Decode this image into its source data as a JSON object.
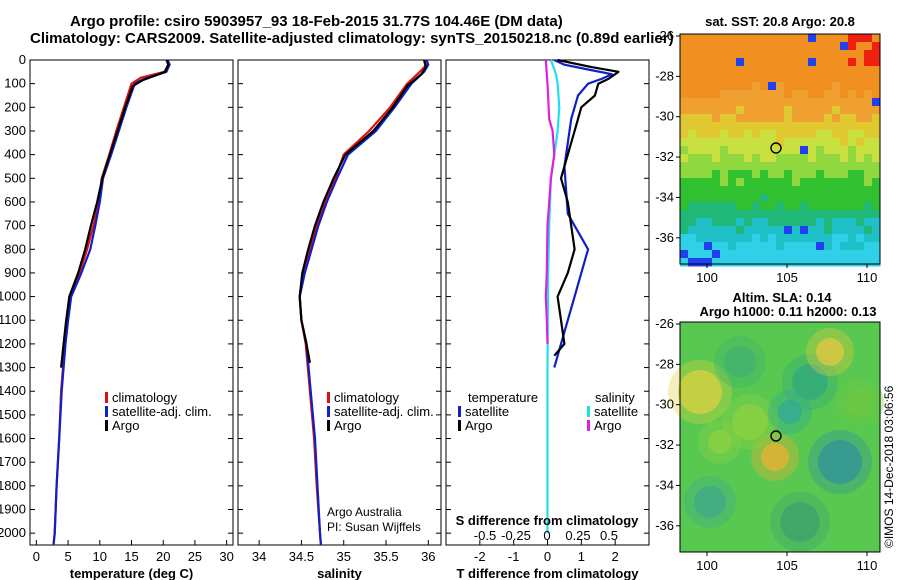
{
  "header": {
    "line1": "Argo profile: csiro 5903957_93 18-Feb-2015 31.77S 104.46E (DM data)",
    "line2": "Climatology: CARS2009. Satellite-adjusted climatology: synTS_20150218.nc (0.89d earlier)"
  },
  "colors": {
    "climatology": "#e01010",
    "satellite": "#1020c8",
    "argo": "#000000",
    "sat_salinity": "#20e0f0",
    "argo_salinity": "#e020e0"
  },
  "panels": {
    "temperature": {
      "xlabel": "temperature (deg C)",
      "legend": [
        "climatology",
        "satellite-adj. clim.",
        "Argo"
      ]
    },
    "salinity": {
      "xlabel": "salinity",
      "legend": [
        "climatology",
        "satellite-adj. clim.",
        "Argo"
      ],
      "credit1": "Argo Australia",
      "credit2": "PI: Susan Wijffels"
    },
    "difference": {
      "xlabel": "T difference from climatology",
      "xlabel_top": "S difference from climatology",
      "legend_temp_title": "temperature",
      "legend_sal_title": "salinity",
      "legend_temp": [
        "satellite",
        "Argo"
      ],
      "legend_sal": [
        "satellite",
        "Argo"
      ]
    },
    "maps": {
      "sst_title": "sat. SST: 20.8 Argo: 20.8",
      "sla_title1": "Altim. SLA: 0.14",
      "sla_title2": "Argo h1000: 0.11 h2000: 0.13",
      "lat_ticks": [
        "-26",
        "-28",
        "-30",
        "-32",
        "-34",
        "-36"
      ],
      "lon_ticks": [
        "100",
        "105",
        "110"
      ]
    },
    "watermark": "©IMOS 14-Dec-2018 03:06:56"
  },
  "chart_data": [
    {
      "type": "line",
      "title": "",
      "xlabel": "temperature (deg C)",
      "ylabel": "depth",
      "xlim": [
        -1,
        31
      ],
      "ylim": [
        2050,
        0
      ],
      "xticks": [
        "0",
        "5",
        "10",
        "15",
        "20",
        "25",
        "30"
      ],
      "yticks": [
        "0",
        "100",
        "200",
        "300",
        "400",
        "500",
        "600",
        "700",
        "800",
        "900",
        "1000",
        "1100",
        "1200",
        "1300",
        "1400",
        "1500",
        "1600",
        "1700",
        "1800",
        "1900",
        "2000"
      ],
      "series": [
        {
          "name": "climatology",
          "color_key": "climatology",
          "points": [
            [
              20.5,
              0
            ],
            [
              20.8,
              20
            ],
            [
              20.2,
              50
            ],
            [
              16.5,
              75
            ],
            [
              15.0,
              100
            ],
            [
              13.8,
              200
            ],
            [
              12.6,
              300
            ],
            [
              11.5,
              400
            ],
            [
              10.3,
              500
            ],
            [
              9.9,
              600
            ],
            [
              9.0,
              700
            ],
            [
              8.0,
              800
            ],
            [
              6.8,
              900
            ],
            [
              5.3,
              1000
            ],
            [
              4.8,
              1100
            ],
            [
              4.5,
              1200
            ],
            [
              3.9,
              1400
            ],
            [
              3.6,
              1600
            ],
            [
              3.2,
              1800
            ],
            [
              2.9,
              2000
            ],
            [
              2.7,
              2050
            ]
          ]
        },
        {
          "name": "satellite-adj. clim.",
          "color_key": "satellite",
          "points": [
            [
              20.7,
              0
            ],
            [
              21.0,
              20
            ],
            [
              20.5,
              50
            ],
            [
              17.0,
              80
            ],
            [
              15.5,
              100
            ],
            [
              14.2,
              200
            ],
            [
              13.0,
              300
            ],
            [
              11.8,
              400
            ],
            [
              10.5,
              500
            ],
            [
              10.0,
              600
            ],
            [
              9.3,
              700
            ],
            [
              8.5,
              800
            ],
            [
              7.1,
              900
            ],
            [
              5.5,
              1000
            ],
            [
              5.0,
              1100
            ],
            [
              4.6,
              1200
            ],
            [
              4.0,
              1400
            ],
            [
              3.6,
              1600
            ],
            [
              3.2,
              1800
            ],
            [
              2.9,
              2000
            ],
            [
              2.7,
              2050
            ]
          ]
        },
        {
          "name": "Argo",
          "color_key": "argo",
          "points": [
            [
              20.6,
              0
            ],
            [
              20.8,
              20
            ],
            [
              20.3,
              50
            ],
            [
              16.8,
              85
            ],
            [
              15.2,
              110
            ],
            [
              14.0,
              200
            ],
            [
              12.8,
              300
            ],
            [
              11.6,
              400
            ],
            [
              10.4,
              500
            ],
            [
              9.6,
              600
            ],
            [
              8.6,
              700
            ],
            [
              7.7,
              800
            ],
            [
              6.6,
              900
            ],
            [
              5.2,
              1000
            ],
            [
              4.7,
              1100
            ],
            [
              4.3,
              1200
            ],
            [
              3.9,
              1300
            ]
          ]
        }
      ]
    },
    {
      "type": "line",
      "title": "",
      "xlabel": "salinity",
      "ylabel": "depth",
      "xlim": [
        33.75,
        36.15
      ],
      "ylim": [
        2050,
        0
      ],
      "xticks": [
        "34",
        "34.5",
        "35",
        "35.5",
        "36"
      ],
      "series": [
        {
          "name": "climatology",
          "color_key": "climatology",
          "points": [
            [
              35.95,
              0
            ],
            [
              35.98,
              20
            ],
            [
              35.9,
              50
            ],
            [
              35.75,
              100
            ],
            [
              35.55,
              200
            ],
            [
              35.3,
              300
            ],
            [
              35.0,
              400
            ],
            [
              34.9,
              500
            ],
            [
              34.78,
              600
            ],
            [
              34.68,
              700
            ],
            [
              34.6,
              800
            ],
            [
              34.52,
              900
            ],
            [
              34.48,
              1000
            ],
            [
              34.5,
              1100
            ],
            [
              34.55,
              1200
            ],
            [
              34.6,
              1400
            ],
            [
              34.65,
              1600
            ],
            [
              34.68,
              1800
            ],
            [
              34.72,
              2000
            ],
            [
              34.73,
              2050
            ]
          ]
        },
        {
          "name": "satellite-adj. clim.",
          "color_key": "satellite",
          "points": [
            [
              35.98,
              0
            ],
            [
              36.0,
              20
            ],
            [
              35.95,
              50
            ],
            [
              35.8,
              100
            ],
            [
              35.6,
              200
            ],
            [
              35.38,
              300
            ],
            [
              35.05,
              400
            ],
            [
              34.92,
              500
            ],
            [
              34.8,
              600
            ],
            [
              34.7,
              700
            ],
            [
              34.62,
              800
            ],
            [
              34.54,
              900
            ],
            [
              34.48,
              1000
            ],
            [
              34.5,
              1100
            ],
            [
              34.56,
              1200
            ],
            [
              34.61,
              1400
            ],
            [
              34.66,
              1600
            ],
            [
              34.69,
              1800
            ],
            [
              34.72,
              2000
            ],
            [
              34.73,
              2050
            ]
          ]
        },
        {
          "name": "Argo",
          "color_key": "argo",
          "points": [
            [
              35.95,
              0
            ],
            [
              35.97,
              30
            ],
            [
              35.92,
              60
            ],
            [
              35.75,
              110
            ],
            [
              35.58,
              200
            ],
            [
              35.35,
              300
            ],
            [
              35.02,
              400
            ],
            [
              34.88,
              500
            ],
            [
              34.76,
              600
            ],
            [
              34.66,
              700
            ],
            [
              34.58,
              800
            ],
            [
              34.51,
              900
            ],
            [
              34.48,
              1000
            ],
            [
              34.5,
              1100
            ],
            [
              34.56,
              1200
            ],
            [
              34.6,
              1280
            ]
          ]
        }
      ]
    },
    {
      "type": "line",
      "title": "",
      "xlabel": "T difference from climatology",
      "xlabel_top": "S difference from climatology",
      "ylabel": "depth",
      "xlim": [
        -3,
        3
      ],
      "ylim": [
        2050,
        0
      ],
      "xticks": [
        "-2",
        "-1",
        "0",
        "1",
        "2"
      ],
      "xticks_top": [
        "-0.5",
        "-0.25",
        "0",
        "0.25",
        "0.5"
      ],
      "series": [
        {
          "name": "temperature satellite",
          "color_key": "satellite",
          "points": [
            [
              0.2,
              0
            ],
            [
              0.5,
              20
            ],
            [
              1.2,
              40
            ],
            [
              1.9,
              60
            ],
            [
              1.6,
              80
            ],
            [
              1.2,
              100
            ],
            [
              0.9,
              150
            ],
            [
              0.7,
              250
            ],
            [
              0.6,
              350
            ],
            [
              0.5,
              450
            ],
            [
              0.55,
              550
            ],
            [
              0.6,
              650
            ],
            [
              1.0,
              750
            ],
            [
              1.2,
              800
            ],
            [
              1.0,
              900
            ],
            [
              0.8,
              1000
            ],
            [
              0.6,
              1100
            ],
            [
              0.4,
              1200
            ],
            [
              0.2,
              1300
            ]
          ]
        },
        {
          "name": "temperature Argo",
          "color_key": "argo",
          "points": [
            [
              0.3,
              0
            ],
            [
              1.3,
              30
            ],
            [
              2.1,
              50
            ],
            [
              1.8,
              80
            ],
            [
              1.5,
              100
            ],
            [
              1.4,
              150
            ],
            [
              1.0,
              200
            ],
            [
              0.8,
              300
            ],
            [
              0.6,
              400
            ],
            [
              0.4,
              500
            ],
            [
              0.6,
              600
            ],
            [
              0.7,
              700
            ],
            [
              0.8,
              800
            ],
            [
              0.6,
              900
            ],
            [
              0.3,
              1000
            ],
            [
              0.4,
              1100
            ],
            [
              0.5,
              1200
            ],
            [
              0.2,
              1250
            ]
          ]
        },
        {
          "name": "salinity satellite",
          "color_key": "sat_salinity",
          "points": [
            [
              0.1,
              0
            ],
            [
              0.25,
              60
            ],
            [
              0.3,
              100
            ],
            [
              0.35,
              200
            ],
            [
              0.3,
              300
            ],
            [
              0.2,
              400
            ],
            [
              0.1,
              500
            ],
            [
              0.05,
              700
            ],
            [
              0.02,
              900
            ],
            [
              0.01,
              1100
            ],
            [
              0.0,
              1300
            ],
            [
              0.0,
              1600
            ],
            [
              0.0,
              2000
            ]
          ]
        },
        {
          "name": "salinity Argo",
          "color_key": "argo_salinity",
          "points": [
            [
              -0.05,
              0
            ],
            [
              0.0,
              100
            ],
            [
              0.05,
              250
            ],
            [
              0.15,
              300
            ],
            [
              0.2,
              400
            ],
            [
              0.1,
              500
            ],
            [
              0.05,
              600
            ],
            [
              0.0,
              700
            ],
            [
              -0.02,
              900
            ],
            [
              -0.05,
              1000
            ],
            [
              -0.02,
              1100
            ],
            [
              0.0,
              1200
            ]
          ]
        }
      ]
    }
  ]
}
